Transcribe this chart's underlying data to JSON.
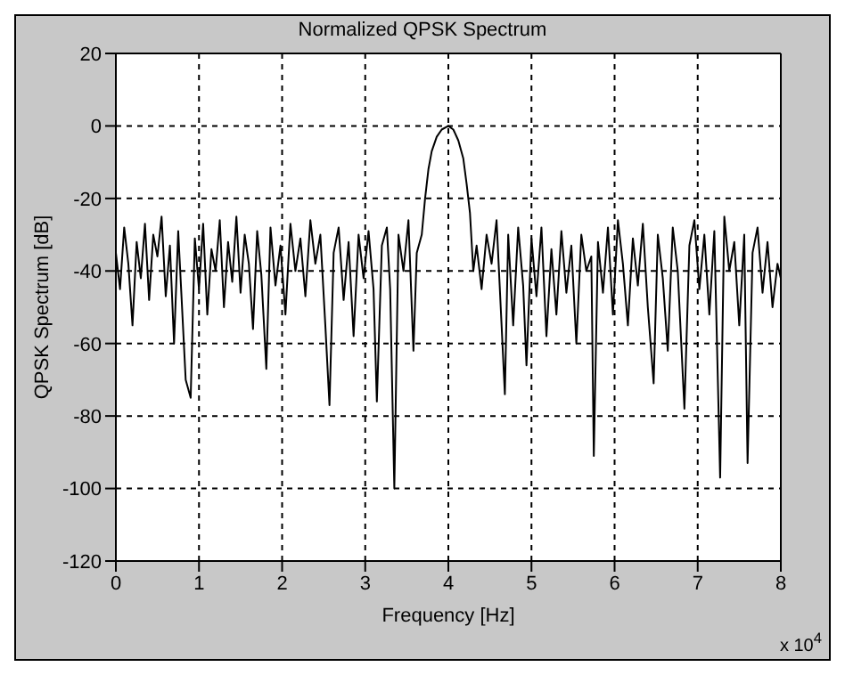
{
  "chart_data": {
    "type": "line",
    "title": "Normalized QPSK Spectrum",
    "xlabel": "Frequency [Hz]",
    "ylabel": "QPSK Spectrum [dB]",
    "annotations": [
      "x 10$^{4}$"
    ],
    "x": [
      0,
      0.05,
      0.1,
      0.15,
      0.2,
      0.25,
      0.3,
      0.35,
      0.4,
      0.45,
      0.5,
      0.55,
      0.6,
      0.65,
      0.7,
      0.75,
      0.84,
      0.9,
      0.95,
      1.0,
      1.05,
      1.1,
      1.15,
      1.2,
      1.25,
      1.3,
      1.35,
      1.4,
      1.45,
      1.5,
      1.55,
      1.6,
      1.65,
      1.7,
      1.75,
      1.81,
      1.86,
      1.92,
      1.98,
      2.04,
      2.1,
      2.16,
      2.22,
      2.28,
      2.34,
      2.4,
      2.46,
      2.52,
      2.57,
      2.62,
      2.68,
      2.74,
      2.8,
      2.86,
      2.92,
      2.98,
      3.04,
      3.1,
      3.14,
      3.2,
      3.26,
      3.3,
      3.35,
      3.4,
      3.46,
      3.52,
      3.58,
      3.62,
      3.68,
      3.72,
      3.76,
      3.8,
      3.86,
      3.92,
      4.0,
      4.06,
      4.12,
      4.18,
      4.22,
      4.26,
      4.3,
      4.34,
      4.4,
      4.46,
      4.52,
      4.58,
      4.63,
      4.68,
      4.72,
      4.78,
      4.84,
      4.9,
      4.94,
      5.0,
      5.06,
      5.12,
      5.18,
      5.24,
      5.3,
      5.36,
      5.42,
      5.48,
      5.54,
      5.6,
      5.66,
      5.72,
      5.75,
      5.8,
      5.86,
      5.92,
      5.98,
      6.04,
      6.1,
      6.16,
      6.22,
      6.28,
      6.34,
      6.4,
      6.47,
      6.52,
      6.58,
      6.64,
      6.7,
      6.76,
      6.84,
      6.9,
      6.96,
      7.02,
      7.08,
      7.14,
      7.2,
      7.27,
      7.32,
      7.38,
      7.44,
      7.5,
      7.56,
      7.6,
      7.66,
      7.72,
      7.78,
      7.84,
      7.9,
      7.96,
      8.0
    ],
    "series": [
      {
        "color": "#000000",
        "values": [
          -35,
          -45,
          -28,
          -38,
          -55,
          -32,
          -42,
          -27,
          -48,
          -30,
          -36,
          -25,
          -47,
          -33,
          -60,
          -29,
          -70,
          -75,
          -31,
          -45,
          -27,
          -52,
          -34,
          -40,
          -26,
          -50,
          -32,
          -43,
          -25,
          -46,
          -30,
          -38,
          -56,
          -29,
          -41,
          -67,
          -28,
          -44,
          -33,
          -52,
          -27,
          -40,
          -31,
          -47,
          -26,
          -38,
          -30,
          -55,
          -77,
          -35,
          -28,
          -48,
          -32,
          -58,
          -30,
          -42,
          -29,
          -45,
          -76,
          -33,
          -28,
          -45,
          -100,
          -30,
          -40,
          -26,
          -62,
          -35,
          -30,
          -20,
          -12,
          -7,
          -3,
          -1,
          0,
          -1,
          -4,
          -9,
          -16,
          -24,
          -40,
          -33,
          -45,
          -30,
          -38,
          -26,
          -50,
          -74,
          -30,
          -55,
          -28,
          -44,
          -66,
          -31,
          -47,
          -28,
          -58,
          -34,
          -52,
          -29,
          -46,
          -33,
          -60,
          -30,
          -40,
          -36,
          -91,
          -32,
          -46,
          -28,
          -52,
          -26,
          -38,
          -55,
          -31,
          -44,
          -27,
          -50,
          -71,
          -30,
          -42,
          -62,
          -28,
          -40,
          -78,
          -33,
          -26,
          -45,
          -30,
          -52,
          -29,
          -97,
          -25,
          -40,
          -32,
          -55,
          -30,
          -93,
          -35,
          -28,
          -46,
          -32,
          -50,
          -38,
          -42
        ]
      }
    ],
    "xlim": [
      0,
      8
    ],
    "xticks": [
      0,
      1,
      2,
      3,
      4,
      5,
      6,
      7,
      8
    ],
    "ylim": [
      -120,
      20
    ],
    "yticks": [
      -120,
      -100,
      -80,
      -60,
      -40,
      -20,
      0,
      20
    ],
    "grid": true
  }
}
